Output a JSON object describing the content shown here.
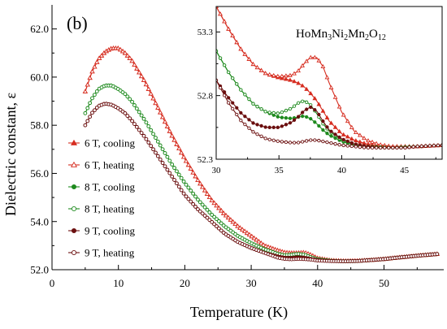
{
  "chart_data": [
    {
      "type": "line",
      "panel_label": "(b)",
      "xlabel": "Temperature (K)",
      "ylabel": "Dielectric constant, ε",
      "xlim": [
        0,
        59
      ],
      "ylim": [
        52.0,
        63.0
      ],
      "xticks": [
        0,
        10,
        20,
        30,
        40,
        50
      ],
      "yticks": [
        52.0,
        54.0,
        56.0,
        58.0,
        60.0,
        62.0
      ],
      "xtick_labels": [
        "0",
        "10",
        "20",
        "30",
        "40",
        "50"
      ],
      "ytick_labels": [
        "52.0",
        "54.0",
        "56.0",
        "58.0",
        "60.0",
        "62.0"
      ],
      "grid": false,
      "legend_position": "left-middle",
      "series": [
        {
          "name": "6 T, cooling",
          "color": "#d62d20",
          "marker": "filled-triangle",
          "x": [
            5,
            6,
            7,
            8,
            9,
            10,
            11,
            12,
            14,
            16,
            18,
            20,
            22,
            24,
            26,
            28,
            30,
            32,
            34,
            35,
            36,
            37,
            38,
            39,
            40,
            42,
            44,
            46,
            48,
            50,
            52,
            55,
            58
          ],
          "y": [
            59.4,
            60.2,
            60.75,
            61.05,
            61.2,
            61.2,
            61.0,
            60.7,
            59.8,
            58.7,
            57.6,
            56.6,
            55.7,
            54.9,
            54.3,
            53.8,
            53.4,
            53.0,
            52.8,
            52.72,
            52.68,
            52.65,
            52.62,
            52.55,
            52.45,
            52.38,
            52.36,
            52.37,
            52.4,
            52.44,
            52.5,
            52.58,
            52.65
          ]
        },
        {
          "name": "6 T, heating",
          "color": "#d62d20",
          "marker": "open-triangle",
          "x": [
            5,
            6,
            7,
            8,
            9,
            10,
            11,
            12,
            14,
            16,
            18,
            20,
            22,
            24,
            26,
            28,
            30,
            32,
            34,
            35,
            36,
            37,
            38,
            39,
            40,
            42,
            44,
            46,
            48,
            50,
            52,
            55,
            58
          ],
          "y": [
            59.4,
            60.2,
            60.75,
            61.05,
            61.2,
            61.2,
            61.0,
            60.7,
            59.8,
            58.7,
            57.6,
            56.6,
            55.7,
            54.9,
            54.3,
            53.8,
            53.4,
            53.0,
            52.8,
            52.72,
            52.7,
            52.7,
            52.72,
            52.62,
            52.48,
            52.39,
            52.36,
            52.37,
            52.4,
            52.44,
            52.5,
            52.58,
            52.65
          ]
        },
        {
          "name": "8 T, cooling",
          "color": "#1e8a1e",
          "marker": "filled-circle",
          "x": [
            5,
            6,
            7,
            8,
            9,
            10,
            11,
            12,
            14,
            16,
            18,
            20,
            22,
            24,
            26,
            28,
            30,
            32,
            34,
            35,
            36,
            37,
            38,
            39,
            40,
            42,
            44,
            46,
            48,
            50,
            52,
            55,
            58
          ],
          "y": [
            58.5,
            59.1,
            59.5,
            59.65,
            59.65,
            59.5,
            59.3,
            59.0,
            58.2,
            57.3,
            56.4,
            55.6,
            54.9,
            54.3,
            53.8,
            53.4,
            53.1,
            52.85,
            52.65,
            52.58,
            52.56,
            52.6,
            52.58,
            52.5,
            52.42,
            52.37,
            52.35,
            52.36,
            52.4,
            52.44,
            52.5,
            52.58,
            52.65
          ]
        },
        {
          "name": "8 T, heating",
          "color": "#1e8a1e",
          "marker": "open-circle",
          "x": [
            5,
            6,
            7,
            8,
            9,
            10,
            11,
            12,
            14,
            16,
            18,
            20,
            22,
            24,
            26,
            28,
            30,
            32,
            34,
            35,
            36,
            37,
            38,
            39,
            40,
            42,
            44,
            46,
            48,
            50,
            52,
            55,
            58
          ],
          "y": [
            58.5,
            59.1,
            59.5,
            59.65,
            59.65,
            59.5,
            59.3,
            59.0,
            58.2,
            57.3,
            56.4,
            55.6,
            54.9,
            54.3,
            53.8,
            53.4,
            53.1,
            52.85,
            52.66,
            52.6,
            52.62,
            52.66,
            52.62,
            52.52,
            52.44,
            52.37,
            52.35,
            52.36,
            52.4,
            52.44,
            52.5,
            52.58,
            52.65
          ]
        },
        {
          "name": "9 T, cooling",
          "color": "#6b0f0f",
          "marker": "filled-circle",
          "x": [
            5,
            6,
            7,
            8,
            9,
            10,
            11,
            12,
            14,
            16,
            18,
            20,
            22,
            24,
            26,
            28,
            30,
            32,
            34,
            35,
            36,
            37,
            38,
            39,
            40,
            42,
            44,
            46,
            48,
            50,
            52,
            55,
            58
          ],
          "y": [
            58.0,
            58.5,
            58.8,
            58.9,
            58.85,
            58.7,
            58.5,
            58.2,
            57.5,
            56.7,
            55.9,
            55.1,
            54.5,
            54.0,
            53.5,
            53.15,
            52.9,
            52.7,
            52.55,
            52.5,
            52.49,
            52.52,
            52.5,
            52.45,
            52.4,
            52.36,
            52.35,
            52.36,
            52.4,
            52.44,
            52.5,
            52.58,
            52.65
          ]
        },
        {
          "name": "9 T, heating",
          "color": "#6b0f0f",
          "marker": "open-circle",
          "x": [
            5,
            6,
            7,
            8,
            9,
            10,
            11,
            12,
            14,
            16,
            18,
            20,
            22,
            24,
            26,
            28,
            30,
            32,
            34,
            35,
            36,
            37,
            38,
            39,
            40,
            42,
            44,
            46,
            48,
            50,
            52,
            55,
            58
          ],
          "y": [
            58.0,
            58.5,
            58.8,
            58.9,
            58.85,
            58.7,
            58.5,
            58.2,
            57.5,
            56.7,
            55.9,
            55.1,
            54.5,
            54.0,
            53.5,
            53.15,
            52.9,
            52.7,
            52.5,
            52.45,
            52.43,
            52.45,
            52.44,
            52.42,
            52.38,
            52.36,
            52.35,
            52.36,
            52.4,
            52.44,
            52.5,
            52.58,
            52.65
          ]
        }
      ]
    },
    {
      "type": "line",
      "inset": true,
      "annotation": "HoMn3Ni2Mn2O12",
      "xlim": [
        30,
        48
      ],
      "ylim": [
        52.3,
        53.5
      ],
      "xticks": [
        30,
        35,
        40,
        45
      ],
      "yticks": [
        52.3,
        52.8,
        53.3
      ],
      "xtick_labels": [
        "30",
        "35",
        "40",
        "45"
      ],
      "ytick_labels": [
        "52.3",
        "52.8",
        "53.3"
      ],
      "grid": false,
      "series": [
        {
          "name": "6 T, cooling",
          "color": "#d62d20",
          "marker": "filled-triangle",
          "x": [
            30,
            31,
            32,
            33,
            34,
            35,
            36,
            36.5,
            37,
            37.5,
            38,
            38.5,
            39,
            40,
            41,
            42,
            43,
            44,
            45,
            46,
            47,
            48
          ],
          "y": [
            53.5,
            53.32,
            53.16,
            53.04,
            52.97,
            52.94,
            52.92,
            52.9,
            52.87,
            52.82,
            52.76,
            52.68,
            52.6,
            52.5,
            52.45,
            52.42,
            52.405,
            52.4,
            52.4,
            52.4,
            52.405,
            52.41
          ]
        },
        {
          "name": "6 T, heating",
          "color": "#d62d20",
          "marker": "open-triangle",
          "x": [
            30,
            31,
            32,
            33,
            34,
            35,
            36,
            36.5,
            37,
            37.5,
            38,
            38.5,
            39,
            40,
            41,
            42,
            43,
            44,
            45,
            46,
            47,
            48
          ],
          "y": [
            53.5,
            53.32,
            53.16,
            53.04,
            52.97,
            52.95,
            52.96,
            52.99,
            53.05,
            53.1,
            53.1,
            53.03,
            52.9,
            52.67,
            52.52,
            52.45,
            52.415,
            52.4,
            52.4,
            52.4,
            52.405,
            52.41
          ]
        },
        {
          "name": "8 T, cooling",
          "color": "#1e8a1e",
          "marker": "filled-circle",
          "x": [
            30,
            31,
            32,
            33,
            34,
            35,
            36,
            36.5,
            37,
            37.5,
            38,
            38.5,
            39,
            40,
            41,
            42,
            43,
            44,
            45,
            46,
            47,
            48
          ],
          "y": [
            53.15,
            52.98,
            52.84,
            52.73,
            52.67,
            52.63,
            52.62,
            52.63,
            52.64,
            52.62,
            52.58,
            52.53,
            52.49,
            52.44,
            52.41,
            52.4,
            52.395,
            52.39,
            52.395,
            52.4,
            52.405,
            52.41
          ]
        },
        {
          "name": "8 T, heating",
          "color": "#1e8a1e",
          "marker": "open-circle",
          "x": [
            30,
            31,
            32,
            33,
            34,
            35,
            36,
            36.5,
            37,
            37.5,
            38,
            38.5,
            39,
            40,
            41,
            42,
            43,
            44,
            45,
            46,
            47,
            48
          ],
          "y": [
            53.15,
            52.98,
            52.84,
            52.73,
            52.67,
            52.66,
            52.7,
            52.74,
            52.76,
            52.73,
            52.66,
            52.58,
            52.52,
            52.45,
            52.42,
            52.4,
            52.395,
            52.39,
            52.395,
            52.4,
            52.405,
            52.41
          ]
        },
        {
          "name": "9 T, cooling",
          "color": "#6b0f0f",
          "marker": "filled-circle",
          "x": [
            30,
            31,
            32,
            33,
            34,
            35,
            36,
            36.5,
            37,
            37.5,
            38,
            38.5,
            39,
            40,
            41,
            42,
            43,
            44,
            45,
            46,
            47,
            48
          ],
          "y": [
            52.92,
            52.78,
            52.66,
            52.58,
            52.55,
            52.55,
            52.59,
            52.63,
            52.68,
            52.71,
            52.68,
            52.6,
            52.53,
            52.46,
            52.42,
            52.4,
            52.39,
            52.39,
            52.39,
            52.4,
            52.405,
            52.41
          ]
        },
        {
          "name": "9 T, heating",
          "color": "#6b0f0f",
          "marker": "open-circle",
          "x": [
            30,
            31,
            32,
            33,
            34,
            35,
            36,
            36.5,
            37,
            37.5,
            38,
            38.5,
            39,
            40,
            41,
            42,
            43,
            44,
            45,
            46,
            47,
            48
          ],
          "y": [
            52.92,
            52.74,
            52.6,
            52.51,
            52.46,
            52.44,
            52.43,
            52.43,
            52.44,
            52.45,
            52.45,
            52.44,
            52.43,
            52.41,
            52.4,
            52.39,
            52.39,
            52.39,
            52.39,
            52.4,
            52.405,
            52.41
          ]
        }
      ]
    }
  ]
}
